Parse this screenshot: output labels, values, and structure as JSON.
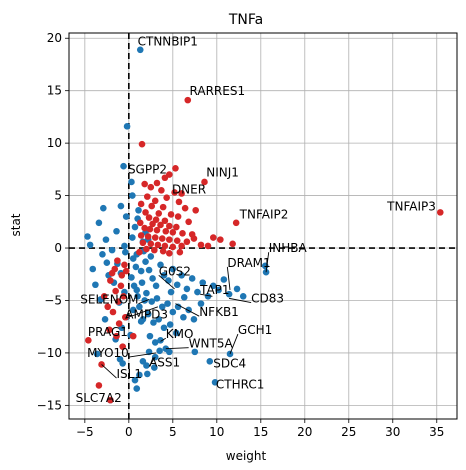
{
  "chart_data": {
    "type": "scatter",
    "title": "TNFa",
    "xlabel": "weight",
    "ylabel": "stat",
    "xlim": [
      -6.8,
      37.3
    ],
    "ylim": [
      -16.3,
      20.5
    ],
    "xticks": [
      -5,
      0,
      5,
      10,
      15,
      20,
      25,
      30,
      35
    ],
    "yticks": [
      -15,
      -10,
      -5,
      0,
      5,
      10,
      15,
      20
    ],
    "grid": true,
    "reference_lines": {
      "x": 0,
      "y": 0
    },
    "colors": {
      "positive": "#d62728",
      "negative": "#1f77b4"
    },
    "points_positive": [
      [
        6.7,
        14.1
      ],
      [
        8.6,
        6.3
      ],
      [
        12.2,
        2.4
      ],
      [
        35.4,
        3.4
      ],
      [
        1.5,
        9.9
      ],
      [
        5.3,
        7.6
      ],
      [
        4.6,
        7.0
      ],
      [
        4.1,
        6.7
      ],
      [
        3.2,
        6.2
      ],
      [
        2.5,
        5.8
      ],
      [
        1.8,
        6.1
      ],
      [
        3.7,
        5.5
      ],
      [
        5.2,
        5.3
      ],
      [
        6.0,
        5.2
      ],
      [
        2.1,
        4.9
      ],
      [
        4.3,
        4.8
      ],
      [
        3.0,
        4.5
      ],
      [
        5.7,
        4.4
      ],
      [
        1.4,
        4.2
      ],
      [
        2.6,
        4.0
      ],
      [
        3.9,
        3.9
      ],
      [
        6.4,
        3.8
      ],
      [
        7.6,
        3.6
      ],
      [
        1.9,
        3.4
      ],
      [
        3.4,
        3.3
      ],
      [
        4.8,
        3.2
      ],
      [
        5.6,
        3.0
      ],
      [
        2.3,
        2.9
      ],
      [
        3.1,
        2.7
      ],
      [
        4.1,
        2.6
      ],
      [
        6.8,
        2.5
      ],
      [
        1.3,
        2.4
      ],
      [
        2.7,
        2.3
      ],
      [
        3.6,
        2.2
      ],
      [
        4.6,
        2.1
      ],
      [
        5.4,
        2.0
      ],
      [
        1.8,
        1.9
      ],
      [
        2.4,
        1.8
      ],
      [
        3.2,
        1.7
      ],
      [
        4.2,
        1.6
      ],
      [
        5.0,
        1.5
      ],
      [
        6.1,
        1.4
      ],
      [
        7.2,
        1.3
      ],
      [
        1.4,
        1.2
      ],
      [
        2.2,
        1.1
      ],
      [
        3.0,
        1.0
      ],
      [
        3.8,
        0.9
      ],
      [
        4.6,
        0.8
      ],
      [
        5.5,
        0.7
      ],
      [
        6.6,
        0.6
      ],
      [
        1.6,
        0.5
      ],
      [
        2.5,
        0.4
      ],
      [
        3.3,
        0.3
      ],
      [
        4.1,
        0.2
      ],
      [
        5.0,
        0.1
      ],
      [
        6.0,
        0.2
      ],
      [
        8.2,
        0.3
      ],
      [
        9.6,
        1.0
      ],
      [
        10.4,
        0.8
      ],
      [
        11.8,
        0.4
      ],
      [
        9.0,
        0.2
      ],
      [
        7.4,
        0.9
      ],
      [
        2.0,
        -0.1
      ],
      [
        2.9,
        -0.2
      ],
      [
        3.9,
        -0.3
      ],
      [
        1.2,
        -0.4
      ],
      [
        4.6,
        -0.5
      ],
      [
        5.8,
        -0.4
      ],
      [
        -4.6,
        -8.8
      ],
      [
        -3.1,
        -11.1
      ],
      [
        -3.4,
        -13.1
      ],
      [
        -2.1,
        -14.5
      ],
      [
        0.5,
        -8.4
      ],
      [
        -1.4,
        -8.4
      ],
      [
        -1.6,
        -2.0
      ],
      [
        -2.1,
        -3.1
      ],
      [
        -1.5,
        -4.1
      ],
      [
        -2.4,
        -5.6
      ],
      [
        -1.2,
        -5.1
      ],
      [
        -0.9,
        -3.6
      ],
      [
        -2.8,
        -4.6
      ],
      [
        -1.8,
        -6.1
      ],
      [
        -0.6,
        -4.6
      ],
      [
        -0.8,
        -2.6
      ],
      [
        -1.1,
        -7.2
      ],
      [
        -0.4,
        -6.6
      ],
      [
        -2.2,
        -7.8
      ],
      [
        -0.7,
        -9.4
      ],
      [
        -0.3,
        -2.2
      ],
      [
        -1.9,
        -2.4
      ],
      [
        -0.5,
        -1.6
      ],
      [
        -1.3,
        -1.2
      ]
    ],
    "points_negative": [
      [
        1.3,
        18.9
      ],
      [
        -2.1,
        -14.5
      ],
      [
        -3.6,
        -10.1
      ],
      [
        -0.3,
        3.0
      ],
      [
        0.7,
        2.0
      ],
      [
        0.4,
        1.0
      ],
      [
        -0.5,
        0.2
      ],
      [
        0.9,
        -0.6
      ],
      [
        -0.4,
        -0.4
      ],
      [
        0.5,
        -1.0
      ],
      [
        -1.3,
        -1.5
      ],
      [
        -0.9,
        -2.4
      ],
      [
        0.3,
        -2.8
      ],
      [
        -1.7,
        -3.3
      ],
      [
        0.6,
        -3.6
      ],
      [
        -0.5,
        -4.2
      ],
      [
        1.0,
        -4.6
      ],
      [
        -1.1,
        -5.2
      ],
      [
        0.5,
        -5.9
      ],
      [
        -0.3,
        -6.6
      ],
      [
        1.4,
        -7.0
      ],
      [
        -0.8,
        -7.6
      ],
      [
        0.2,
        -8.3
      ],
      [
        -1.5,
        -8.7
      ],
      [
        1.2,
        -12.1
      ],
      [
        0.9,
        -13.4
      ],
      [
        -4.7,
        1.1
      ],
      [
        -4.4,
        0.3
      ],
      [
        -3.4,
        2.4
      ],
      [
        -3.0,
        -0.6
      ],
      [
        -2.6,
        0.8
      ],
      [
        -2.5,
        -1.4
      ],
      [
        -2.3,
        -2.6
      ],
      [
        -1.9,
        -0.2
      ],
      [
        -0.6,
        7.8
      ],
      [
        -0.2,
        11.6
      ],
      [
        0.3,
        6.3
      ],
      [
        0.4,
        5.0
      ],
      [
        -0.9,
        4.0
      ],
      [
        1.1,
        3.6
      ],
      [
        -2.9,
        3.8
      ],
      [
        -1.4,
        1.6
      ],
      [
        1.9,
        -1.3
      ],
      [
        2.3,
        -2.1
      ],
      [
        2.7,
        -2.9
      ],
      [
        3.1,
        -3.6
      ],
      [
        3.6,
        -1.6
      ],
      [
        4.0,
        -2.6
      ],
      [
        4.5,
        -3.1
      ],
      [
        5.0,
        -2.0
      ],
      [
        5.5,
        -3.5
      ],
      [
        6.0,
        -2.6
      ],
      [
        6.6,
        -3.9
      ],
      [
        7.2,
        -2.9
      ],
      [
        7.8,
        -4.2
      ],
      [
        8.4,
        -3.3
      ],
      [
        9.0,
        -4.6
      ],
      [
        9.6,
        -3.6
      ],
      [
        10.2,
        -4.0
      ],
      [
        10.8,
        -3.0
      ],
      [
        11.4,
        -4.4
      ],
      [
        2.0,
        -4.3
      ],
      [
        2.6,
        -5.1
      ],
      [
        3.2,
        -4.8
      ],
      [
        3.8,
        -5.6
      ],
      [
        4.4,
        -5.3
      ],
      [
        5.0,
        -6.1
      ],
      [
        5.6,
        -5.6
      ],
      [
        6.2,
        -6.6
      ],
      [
        6.8,
        -5.9
      ],
      [
        7.4,
        -6.8
      ],
      [
        2.2,
        -6.3
      ],
      [
        2.8,
        -7.1
      ],
      [
        3.4,
        -6.8
      ],
      [
        4.0,
        -7.6
      ],
      [
        4.7,
        -7.3
      ],
      [
        5.4,
        -8.1
      ],
      [
        2.4,
        -8.4
      ],
      [
        3.0,
        -9.0
      ],
      [
        3.6,
        -8.8
      ],
      [
        4.2,
        -9.6
      ],
      [
        2.3,
        -9.9
      ],
      [
        3.0,
        -10.4
      ],
      [
        3.5,
        -9.8
      ],
      [
        4.6,
        -9.9
      ],
      [
        7.5,
        -9.9
      ],
      [
        9.2,
        -10.8
      ],
      [
        11.5,
        -10.1
      ],
      [
        9.8,
        -12.8
      ],
      [
        15.6,
        -2.3
      ],
      [
        15.5,
        -1.7
      ],
      [
        1.6,
        0.6
      ],
      [
        2.2,
        0.8
      ],
      [
        1.9,
        1.5
      ],
      [
        2.5,
        -0.8
      ],
      [
        1.7,
        -0.3
      ],
      [
        0.8,
        -1.8
      ],
      [
        1.4,
        -2.2
      ],
      [
        0.9,
        -4.0
      ],
      [
        1.5,
        -3.3
      ],
      [
        1.8,
        -5.0
      ],
      [
        1.2,
        -5.6
      ],
      [
        1.6,
        -6.8
      ],
      [
        -1.0,
        -10.6
      ],
      [
        -0.7,
        -11.0
      ],
      [
        0.7,
        -12.6
      ],
      [
        1.0,
        2.8
      ],
      [
        2.1,
        -12.0
      ],
      [
        13.0,
        -4.6
      ],
      [
        12.3,
        -3.9
      ],
      [
        8.2,
        -5.3
      ],
      [
        6.3,
        -4.7
      ],
      [
        4.8,
        -4.2
      ],
      [
        2.9,
        -11.4
      ],
      [
        1.6,
        -10.8
      ],
      [
        2.0,
        -11.2
      ],
      [
        -4.1,
        -2.0
      ],
      [
        -3.8,
        -3.5
      ],
      [
        -3.2,
        -4.9
      ],
      [
        -2.7,
        -6.8
      ]
    ],
    "annotations": [
      {
        "label": "CTNNBIP1",
        "point": [
          1.3,
          18.9
        ],
        "text": [
          1.0,
          19.3
        ],
        "anchor": "start",
        "leader": false
      },
      {
        "label": "RARRES1",
        "point": [
          6.7,
          14.1
        ],
        "text": [
          6.9,
          14.6
        ],
        "anchor": "start",
        "leader": false
      },
      {
        "label": "SGPP2",
        "point": [
          0.6,
          5.9
        ],
        "text": [
          -0.1,
          7.1
        ],
        "anchor": "start",
        "leader": false
      },
      {
        "label": "NINJ1",
        "point": [
          8.6,
          6.3
        ],
        "text": [
          8.8,
          6.8
        ],
        "anchor": "start",
        "leader": false
      },
      {
        "label": "DNER",
        "point": [
          4.6,
          5.3
        ],
        "text": [
          4.9,
          5.2
        ],
        "anchor": "start",
        "leader": false
      },
      {
        "label": "TNFAIP2",
        "point": [
          12.2,
          2.4
        ],
        "text": [
          12.6,
          2.8
        ],
        "anchor": "start",
        "leader": false
      },
      {
        "label": "TNFAIP3",
        "point": [
          35.4,
          3.4
        ],
        "text": [
          34.9,
          3.6
        ],
        "anchor": "end",
        "leader": false
      },
      {
        "label": "INHBA",
        "point": [
          15.6,
          -2.3
        ],
        "text": [
          15.9,
          -0.4
        ],
        "anchor": "start",
        "leader": true
      },
      {
        "label": "DRAM1",
        "point": [
          11.5,
          -4.0
        ],
        "text": [
          11.2,
          -1.8
        ],
        "anchor": "start",
        "leader": true
      },
      {
        "label": "G0S2",
        "point": [
          5.2,
          -3.9
        ],
        "text": [
          3.4,
          -2.6
        ],
        "anchor": "start",
        "leader": true
      },
      {
        "label": "TAP1",
        "point": [
          9.5,
          -4.6
        ],
        "text": [
          8.1,
          -4.4
        ],
        "anchor": "start",
        "leader": true
      },
      {
        "label": "CD83",
        "point": [
          11.4,
          -4.8
        ],
        "text": [
          13.9,
          -5.2
        ],
        "anchor": "start",
        "leader": true
      },
      {
        "label": "SELENOM",
        "point": [
          2.3,
          -4.9
        ],
        "text": [
          1.1,
          -5.3
        ],
        "anchor": "end",
        "leader": true
      },
      {
        "label": "AMPD3",
        "point": [
          3.3,
          -5.6
        ],
        "text": [
          -0.4,
          -6.7
        ],
        "anchor": "start",
        "leader": true
      },
      {
        "label": "NFKB1",
        "point": [
          5.3,
          -5.3
        ],
        "text": [
          8.0,
          -6.5
        ],
        "anchor": "start",
        "leader": true
      },
      {
        "label": "GCH1",
        "point": [
          11.5,
          -10.1
        ],
        "text": [
          12.4,
          -8.2
        ],
        "anchor": "start",
        "leader": true
      },
      {
        "label": "PRAG1",
        "point": [
          -1.0,
          -8.6
        ],
        "text": [
          -0.1,
          -8.4
        ],
        "anchor": "end",
        "leader": false
      },
      {
        "label": "KMO",
        "point": [
          3.6,
          -8.9
        ],
        "text": [
          4.2,
          -8.6
        ],
        "anchor": "start",
        "leader": true
      },
      {
        "label": "WNT5A",
        "point": [
          4.2,
          -9.6
        ],
        "text": [
          6.8,
          -9.5
        ],
        "anchor": "start",
        "leader": true
      },
      {
        "label": "MYO10",
        "point": [
          3.1,
          -10.0
        ],
        "text": [
          0.0,
          -10.4
        ],
        "anchor": "end",
        "leader": true
      },
      {
        "label": "SDC4",
        "point": [
          9.2,
          -10.8
        ],
        "text": [
          9.6,
          -11.4
        ],
        "anchor": "start",
        "leader": false
      },
      {
        "label": "ASS1",
        "point": [
          3.0,
          -10.4
        ],
        "text": [
          2.3,
          -11.3
        ],
        "anchor": "start",
        "leader": true
      },
      {
        "label": "ISL1",
        "point": [
          -3.1,
          -11.1
        ],
        "text": [
          -1.4,
          -12.4
        ],
        "anchor": "start",
        "leader": true
      },
      {
        "label": "CTHRC1",
        "point": [
          9.8,
          -12.8
        ],
        "text": [
          9.9,
          -13.4
        ],
        "anchor": "start",
        "leader": false
      },
      {
        "label": "SLC7A2",
        "point": [
          -2.1,
          -14.5
        ],
        "text": [
          -0.8,
          -14.7
        ],
        "anchor": "end",
        "leader": false
      }
    ]
  }
}
